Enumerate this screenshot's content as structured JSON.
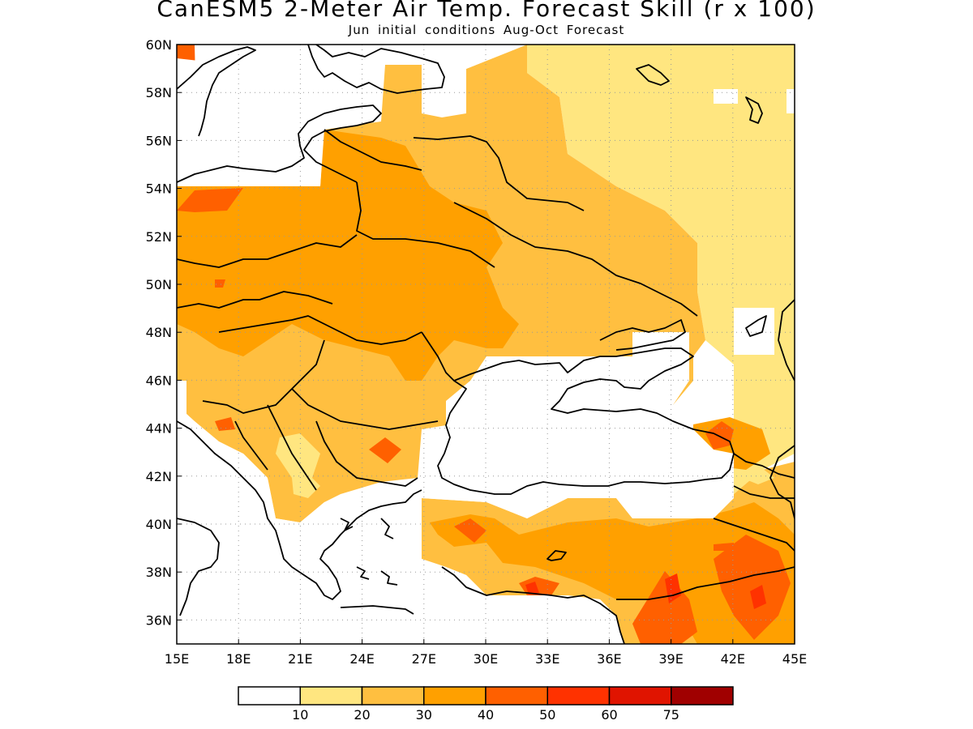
{
  "title": "CanESM5 2-Meter Air Temp. Forecast Skill (r x 100)",
  "subtitle": "Jun initial conditions  Aug-Oct Forecast",
  "map": {
    "lon_range": [
      15,
      45
    ],
    "lat_range": [
      35,
      60
    ],
    "lon_ticks": [
      15,
      18,
      21,
      24,
      27,
      30,
      33,
      36,
      39,
      42,
      45
    ],
    "lat_ticks": [
      36,
      38,
      40,
      42,
      44,
      46,
      48,
      50,
      52,
      54,
      56,
      58,
      60
    ],
    "lon_labels": [
      "15E",
      "18E",
      "21E",
      "24E",
      "27E",
      "30E",
      "33E",
      "36E",
      "39E",
      "42E",
      "45E"
    ],
    "lat_labels": [
      "36N",
      "38N",
      "40N",
      "42N",
      "44N",
      "46N",
      "48N",
      "50N",
      "52N",
      "54N",
      "56N",
      "58N",
      "60N"
    ],
    "grid": "dotted",
    "colors": {
      "lt10": "#ffffff",
      "10-20": "#ffe680",
      "20-30": "#ffbf40",
      "30-40": "#ffa000",
      "40-50": "#ff6000",
      "50-60": "#ff3200",
      "60-75": "#e01400",
      "gt75": "#a00000"
    }
  },
  "legend": {
    "colors": [
      "#ffffff",
      "#ffe680",
      "#ffbf40",
      "#ffa000",
      "#ff6000",
      "#ff3200",
      "#e01400",
      "#a00000"
    ],
    "labels": [
      "10",
      "20",
      "30",
      "40",
      "50",
      "60",
      "75"
    ]
  }
}
